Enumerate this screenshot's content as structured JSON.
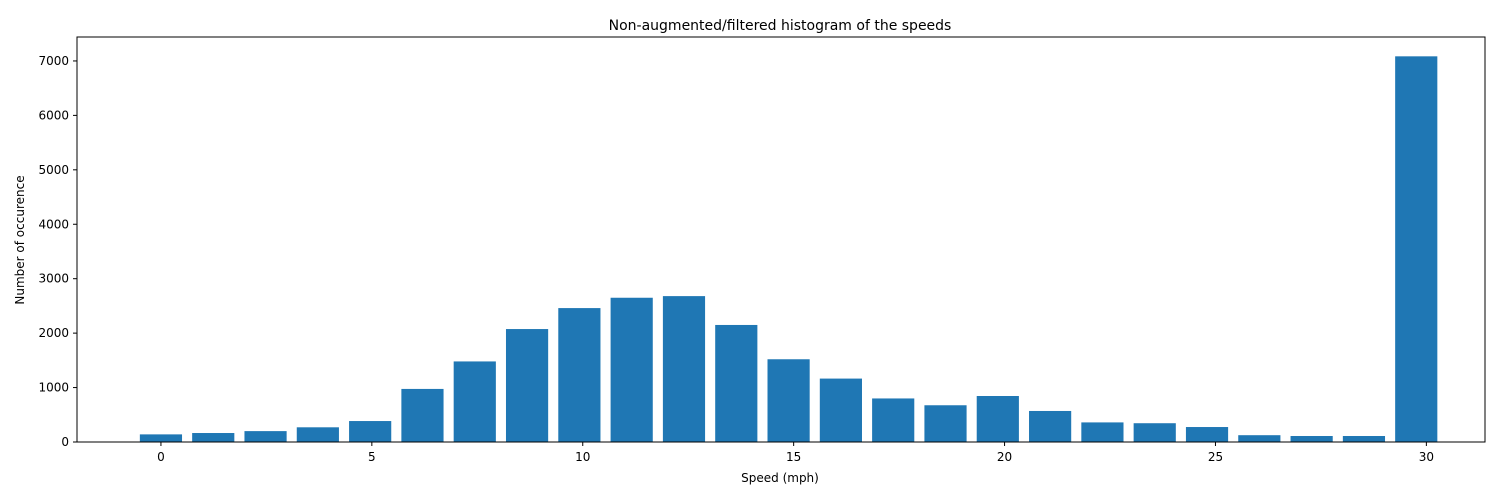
{
  "chart_data": {
    "type": "bar",
    "title": "Non-augmented/filtered histogram of the speeds",
    "xlabel": "Speed (mph)",
    "ylabel": "Number of occurence",
    "x": [
      0.0,
      1.24,
      2.48,
      3.72,
      4.96,
      6.2,
      7.44,
      8.68,
      9.92,
      11.16,
      12.4,
      13.64,
      14.88,
      16.12,
      17.36,
      18.6,
      19.84,
      21.08,
      22.32,
      23.56,
      24.8,
      26.04,
      27.28,
      28.52,
      29.76
    ],
    "values": [
      140,
      165,
      200,
      270,
      385,
      975,
      1480,
      2075,
      2460,
      2650,
      2680,
      2150,
      1520,
      1165,
      800,
      675,
      845,
      570,
      360,
      345,
      275,
      125,
      110,
      110,
      7085
    ],
    "bar_width": 1.0,
    "xlim": [
      -1.99,
      31.39
    ],
    "ylim": [
      0,
      7440
    ],
    "xticks": [
      0,
      5,
      10,
      15,
      20,
      25,
      30
    ],
    "yticks": [
      0,
      1000,
      2000,
      3000,
      4000,
      5000,
      6000,
      7000
    ],
    "color": "#1f77b4",
    "grid": false,
    "legend": "none"
  }
}
